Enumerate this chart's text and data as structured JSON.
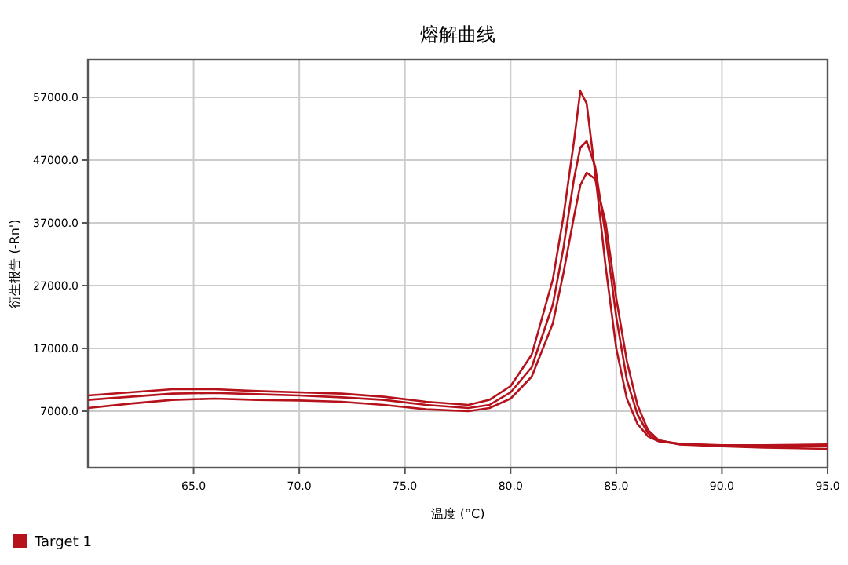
{
  "chart_data": {
    "type": "line",
    "title": "熔解曲线",
    "xlabel": "温度 (°C)",
    "ylabel": "衍生报告 (-Rn')",
    "x": [
      60,
      62,
      64,
      66,
      68,
      70,
      72,
      74,
      76,
      78,
      79,
      80,
      81,
      82,
      82.5,
      83,
      83.3,
      83.6,
      84,
      84.5,
      85,
      85.5,
      86,
      86.5,
      87,
      88,
      90,
      92,
      95
    ],
    "series": [
      {
        "name": "Target 1",
        "color": "#b5121b",
        "values": [
          9500,
          10000,
          10500,
          10500,
          10200,
          10000,
          9800,
          9300,
          8500,
          8000,
          8800,
          11000,
          16000,
          28000,
          38000,
          50000,
          58000,
          56000,
          45000,
          30000,
          17000,
          9000,
          5000,
          3000,
          2200,
          1800,
          1500,
          1500,
          1500
        ]
      },
      {
        "color": "#b5121b",
        "values": [
          8800,
          9300,
          9800,
          9900,
          9700,
          9500,
          9200,
          8800,
          8000,
          7500,
          8000,
          10000,
          14000,
          24000,
          33000,
          44000,
          49000,
          50000,
          46000,
          35000,
          22000,
          12000,
          6500,
          3500,
          2300,
          1800,
          1600,
          1600,
          1700
        ]
      },
      {
        "color": "#b5121b",
        "values": [
          7500,
          8200,
          8800,
          9000,
          8800,
          8700,
          8500,
          8000,
          7300,
          7000,
          7500,
          9000,
          12500,
          21000,
          29000,
          38000,
          43000,
          45000,
          44000,
          37000,
          25000,
          15000,
          8000,
          4000,
          2400,
          1700,
          1400,
          1200,
          1000
        ]
      }
    ],
    "xlim": [
      60,
      95
    ],
    "xticks": [
      {
        "value": 65,
        "label": "65.0"
      },
      {
        "value": 70,
        "label": "70.0"
      },
      {
        "value": 75,
        "label": "75.0"
      },
      {
        "value": 80,
        "label": "80.0"
      },
      {
        "value": 85,
        "label": "85.0"
      },
      {
        "value": 90,
        "label": "90.0"
      },
      {
        "value": 95,
        "label": "95.0"
      }
    ],
    "ylim": [
      -2000,
      63000
    ],
    "yticks": [
      {
        "value": 7000,
        "label": "7000.0"
      },
      {
        "value": 17000,
        "label": "17000.0"
      },
      {
        "value": 27000,
        "label": "27000.0"
      },
      {
        "value": 37000,
        "label": "37000.0"
      },
      {
        "value": 47000,
        "label": "47000.0"
      },
      {
        "value": 57000,
        "label": "57000.0"
      }
    ],
    "grid": true,
    "legend": "bottom left",
    "marker": "none",
    "line_style": "solid"
  }
}
